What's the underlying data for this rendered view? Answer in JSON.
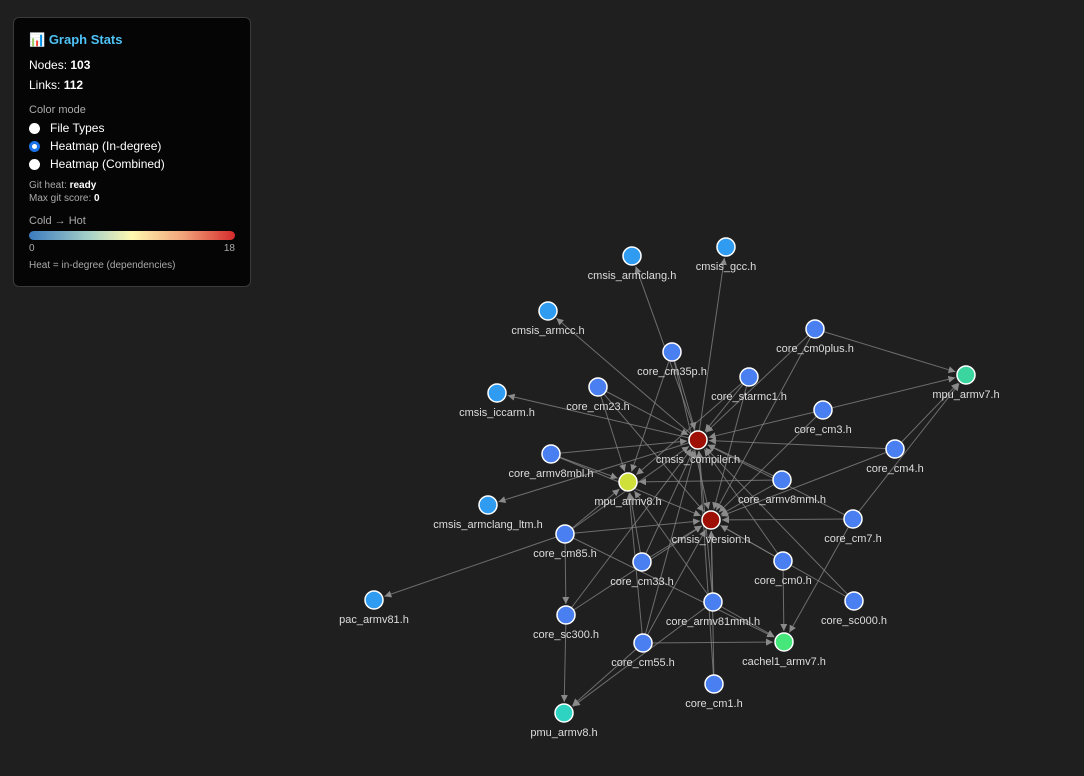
{
  "panel": {
    "icon": "bar-chart-icon",
    "title": "Graph Stats",
    "nodes_label": "Nodes:",
    "nodes_value": "103",
    "links_label": "Links:",
    "links_value": "112",
    "color_mode_label": "Color mode",
    "color_modes": [
      {
        "label": "File Types",
        "selected": false
      },
      {
        "label": "Heatmap (In-degree)",
        "selected": true
      },
      {
        "label": "Heatmap (Combined)",
        "selected": false
      }
    ],
    "git_heat_label": "Git heat:",
    "git_heat_value": "ready",
    "max_git_label": "Max git score:",
    "max_git_value": "0",
    "legend_title": "Cold → Hot",
    "legend_min": "0",
    "legend_max": "18",
    "heat_note": "Heat = in-degree (dependencies)"
  },
  "colors": {
    "background": "#1f1f1f",
    "edge": "#888888",
    "accent": "#4fc3f7"
  },
  "graph": {
    "nodes": [
      {
        "id": "cmsis_armclang.h",
        "color": "#2f9cf2"
      },
      {
        "id": "cmsis_gcc.h",
        "color": "#2f9cf2"
      },
      {
        "id": "cmsis_armcc.h",
        "color": "#2f9cf2"
      },
      {
        "id": "cmsis_iccarm.h",
        "color": "#2f9cf2"
      },
      {
        "id": "cmsis_armclang_ltm.h",
        "color": "#2f9cf2"
      },
      {
        "id": "pac_armv81.h",
        "color": "#2f9cf2"
      },
      {
        "id": "core_cm35p.h",
        "color": "#4a7ff2"
      },
      {
        "id": "core_cm0plus.h",
        "color": "#4a7ff2"
      },
      {
        "id": "mpu_armv7.h",
        "color": "#3bd6a0"
      },
      {
        "id": "core_starmc1.h",
        "color": "#4a7ff2"
      },
      {
        "id": "core_cm23.h",
        "color": "#4a7ff2"
      },
      {
        "id": "core_cm3.h",
        "color": "#4a7ff2"
      },
      {
        "id": "cmsis_compiler.h",
        "color": "#9e1005"
      },
      {
        "id": "core_cm4.h",
        "color": "#4a7ff2"
      },
      {
        "id": "core_armv8mbl.h",
        "color": "#4a7ff2"
      },
      {
        "id": "mpu_armv8.h",
        "color": "#cfe03a"
      },
      {
        "id": "core_armv8mml.h",
        "color": "#4a7ff2"
      },
      {
        "id": "cmsis_version.h",
        "color": "#9e1005"
      },
      {
        "id": "core_cm7.h",
        "color": "#4a7ff2"
      },
      {
        "id": "core_cm85.h",
        "color": "#4a7ff2"
      },
      {
        "id": "core_cm33.h",
        "color": "#4a7ff2"
      },
      {
        "id": "core_cm0.h",
        "color": "#4a7ff2"
      },
      {
        "id": "core_sc300.h",
        "color": "#4a7ff2"
      },
      {
        "id": "core_armv81mml.h",
        "color": "#4a7ff2"
      },
      {
        "id": "core_sc000.h",
        "color": "#4a7ff2"
      },
      {
        "id": "core_cm55.h",
        "color": "#4a7ff2"
      },
      {
        "id": "cachel1_armv7.h",
        "color": "#45e67a"
      },
      {
        "id": "core_cm1.h",
        "color": "#4a7ff2"
      },
      {
        "id": "pmu_armv8.h",
        "color": "#2ed3c2"
      }
    ],
    "links": [
      [
        "cmsis_compiler.h",
        "cmsis_armclang.h"
      ],
      [
        "cmsis_compiler.h",
        "cmsis_gcc.h"
      ],
      [
        "cmsis_compiler.h",
        "cmsis_armcc.h"
      ],
      [
        "cmsis_compiler.h",
        "cmsis_iccarm.h"
      ],
      [
        "cmsis_compiler.h",
        "cmsis_armclang_ltm.h"
      ],
      [
        "core_cm85.h",
        "pac_armv81.h"
      ],
      [
        "core_cm35p.h",
        "cmsis_compiler.h"
      ],
      [
        "core_cm0plus.h",
        "cmsis_compiler.h"
      ],
      [
        "core_starmc1.h",
        "cmsis_compiler.h"
      ],
      [
        "core_cm23.h",
        "cmsis_compiler.h"
      ],
      [
        "core_cm3.h",
        "cmsis_compiler.h"
      ],
      [
        "core_cm4.h",
        "cmsis_compiler.h"
      ],
      [
        "core_armv8mbl.h",
        "cmsis_compiler.h"
      ],
      [
        "core_armv8mml.h",
        "cmsis_compiler.h"
      ],
      [
        "core_cm7.h",
        "cmsis_compiler.h"
      ],
      [
        "core_cm85.h",
        "cmsis_compiler.h"
      ],
      [
        "core_cm33.h",
        "cmsis_compiler.h"
      ],
      [
        "core_cm0.h",
        "cmsis_compiler.h"
      ],
      [
        "core_sc300.h",
        "cmsis_compiler.h"
      ],
      [
        "core_armv81mml.h",
        "cmsis_compiler.h"
      ],
      [
        "core_sc000.h",
        "cmsis_compiler.h"
      ],
      [
        "core_cm55.h",
        "cmsis_compiler.h"
      ],
      [
        "core_cm1.h",
        "cmsis_compiler.h"
      ],
      [
        "core_cm35p.h",
        "cmsis_version.h"
      ],
      [
        "core_cm0plus.h",
        "cmsis_version.h"
      ],
      [
        "core_starmc1.h",
        "cmsis_version.h"
      ],
      [
        "core_cm23.h",
        "cmsis_version.h"
      ],
      [
        "core_cm3.h",
        "cmsis_version.h"
      ],
      [
        "core_cm4.h",
        "cmsis_version.h"
      ],
      [
        "core_armv8mbl.h",
        "cmsis_version.h"
      ],
      [
        "core_armv8mml.h",
        "cmsis_version.h"
      ],
      [
        "core_cm7.h",
        "cmsis_version.h"
      ],
      [
        "core_cm85.h",
        "cmsis_version.h"
      ],
      [
        "core_cm33.h",
        "cmsis_version.h"
      ],
      [
        "core_cm0.h",
        "cmsis_version.h"
      ],
      [
        "core_sc300.h",
        "cmsis_version.h"
      ],
      [
        "core_armv81mml.h",
        "cmsis_version.h"
      ],
      [
        "core_sc000.h",
        "cmsis_version.h"
      ],
      [
        "core_cm55.h",
        "cmsis_version.h"
      ],
      [
        "core_cm1.h",
        "cmsis_version.h"
      ],
      [
        "core_cm35p.h",
        "mpu_armv8.h"
      ],
      [
        "core_cm23.h",
        "mpu_armv8.h"
      ],
      [
        "core_armv8mbl.h",
        "mpu_armv8.h"
      ],
      [
        "core_armv8mml.h",
        "mpu_armv8.h"
      ],
      [
        "core_cm85.h",
        "mpu_armv8.h"
      ],
      [
        "core_cm33.h",
        "mpu_armv8.h"
      ],
      [
        "core_armv81mml.h",
        "mpu_armv8.h"
      ],
      [
        "core_cm55.h",
        "mpu_armv8.h"
      ],
      [
        "core_starmc1.h",
        "mpu_armv8.h"
      ],
      [
        "core_cm0plus.h",
        "mpu_armv7.h"
      ],
      [
        "core_cm3.h",
        "mpu_armv7.h"
      ],
      [
        "core_cm4.h",
        "mpu_armv7.h"
      ],
      [
        "core_cm7.h",
        "mpu_armv7.h"
      ],
      [
        "core_cm0.h",
        "cachel1_armv7.h"
      ],
      [
        "core_cm7.h",
        "cachel1_armv7.h"
      ],
      [
        "core_cm55.h",
        "cachel1_armv7.h"
      ],
      [
        "core_armv81mml.h",
        "cachel1_armv7.h"
      ],
      [
        "core_cm85.h",
        "cachel1_armv7.h"
      ],
      [
        "core_sc300.h",
        "pmu_armv8.h"
      ],
      [
        "core_cm55.h",
        "pmu_armv8.h"
      ],
      [
        "core_armv81mml.h",
        "pmu_armv8.h"
      ],
      [
        "core_cm85.h",
        "core_sc300.h"
      ]
    ]
  }
}
